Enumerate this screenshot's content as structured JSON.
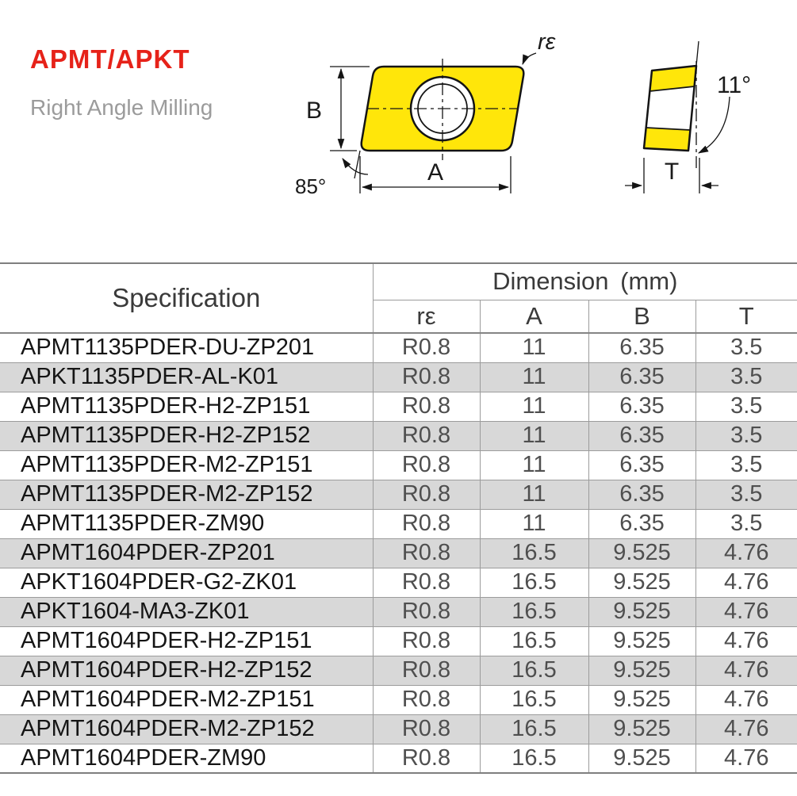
{
  "colors": {
    "accent-red": "#e62219",
    "subtitle-gray": "#9b9b9b",
    "insert-yellow": "#ffe60a",
    "stripe-gray": "#d8d8d8"
  },
  "header": {
    "title": "APMT/APKT",
    "subtitle": "Right Angle Milling"
  },
  "diagram": {
    "front": {
      "height_label": "B",
      "width_label": "A",
      "angle_label": "85°",
      "radius_label": "rε"
    },
    "side": {
      "angle_label": "11°",
      "thickness_label": "T"
    }
  },
  "table": {
    "spec_header": "Specification",
    "dimension_header": "Dimension (mm)",
    "columns": [
      "rε",
      "A",
      "B",
      "T"
    ],
    "rows": [
      {
        "spec": "APMT1135PDER-DU-ZP201",
        "re": "R0.8",
        "a": "11",
        "b": "6.35",
        "t": "3.5"
      },
      {
        "spec": "APKT1135PDER-AL-K01",
        "re": "R0.8",
        "a": "11",
        "b": "6.35",
        "t": "3.5"
      },
      {
        "spec": "APMT1135PDER-H2-ZP151",
        "re": "R0.8",
        "a": "11",
        "b": "6.35",
        "t": "3.5"
      },
      {
        "spec": "APMT1135PDER-H2-ZP152",
        "re": "R0.8",
        "a": "11",
        "b": "6.35",
        "t": "3.5"
      },
      {
        "spec": "APMT1135PDER-M2-ZP151",
        "re": "R0.8",
        "a": "11",
        "b": "6.35",
        "t": "3.5"
      },
      {
        "spec": "APMT1135PDER-M2-ZP152",
        "re": "R0.8",
        "a": "11",
        "b": "6.35",
        "t": "3.5"
      },
      {
        "spec": "APMT1135PDER-ZM90",
        "re": "R0.8",
        "a": "11",
        "b": "6.35",
        "t": "3.5"
      },
      {
        "spec": "APMT1604PDER-ZP201",
        "re": "R0.8",
        "a": "16.5",
        "b": "9.525",
        "t": "4.76"
      },
      {
        "spec": "APKT1604PDER-G2-ZK01",
        "re": "R0.8",
        "a": "16.5",
        "b": "9.525",
        "t": "4.76"
      },
      {
        "spec": "APKT1604-MA3-ZK01",
        "re": "R0.8",
        "a": "16.5",
        "b": "9.525",
        "t": "4.76"
      },
      {
        "spec": "APMT1604PDER-H2-ZP151",
        "re": "R0.8",
        "a": "16.5",
        "b": "9.525",
        "t": "4.76"
      },
      {
        "spec": "APMT1604PDER-H2-ZP152",
        "re": "R0.8",
        "a": "16.5",
        "b": "9.525",
        "t": "4.76"
      },
      {
        "spec": "APMT1604PDER-M2-ZP151",
        "re": "R0.8",
        "a": "16.5",
        "b": "9.525",
        "t": "4.76"
      },
      {
        "spec": "APMT1604PDER-M2-ZP152",
        "re": "R0.8",
        "a": "16.5",
        "b": "9.525",
        "t": "4.76"
      },
      {
        "spec": "APMT1604PDER-ZM90",
        "re": "R0.8",
        "a": "16.5",
        "b": "9.525",
        "t": "4.76"
      }
    ]
  }
}
